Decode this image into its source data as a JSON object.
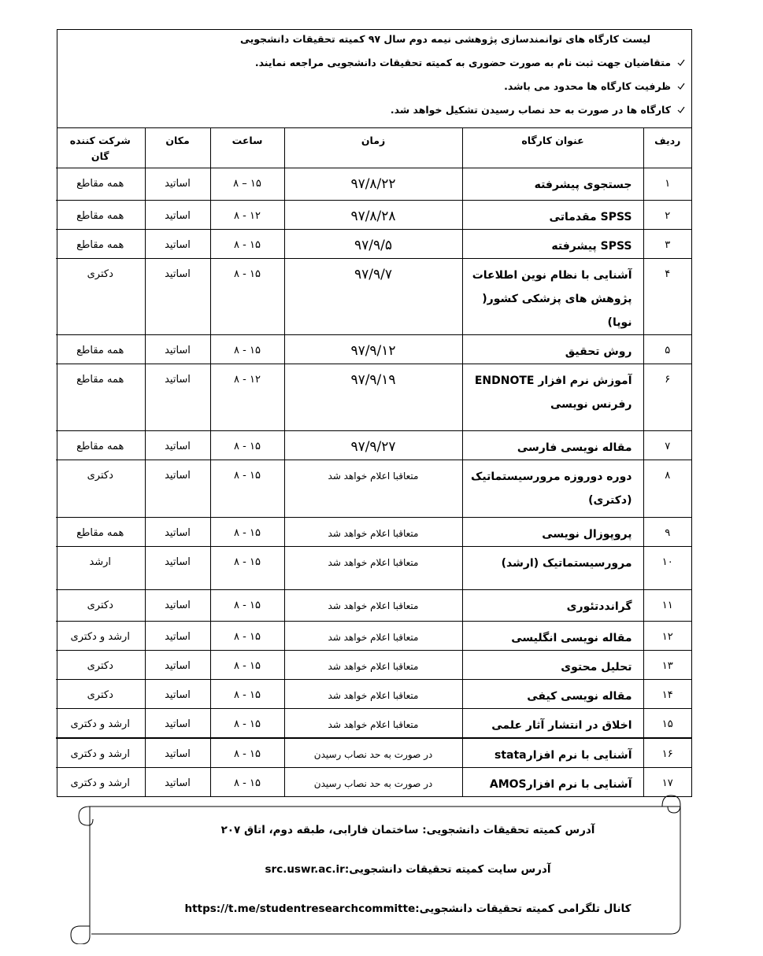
{
  "header": {
    "title": "لیست کارگاه های توانمندسازی پژوهشی نیمه دوم سال ۹۷ کمیته تحقیقات دانشجویی",
    "notes": [
      "متقاضیان جهت ثبت نام به صورت حضوری به کمیته تحقیقات دانشجویی مراجعه نمایند.",
      "ظرفیت کارگاه ها محدود می باشد.",
      "کارگاه ها در صورت به حد نصاب رسیدن تشکیل خواهد شد."
    ]
  },
  "table": {
    "columns": [
      "ردیف",
      "عنوان کارگاه",
      "زمان",
      "ساعت",
      "مکان",
      "شرکت کننده گان"
    ],
    "rows": [
      [
        "۱",
        "جستجوی پیشرفته",
        "۹۷/۸/۲۲",
        "۸ – ۱۵",
        "اساتید",
        "همه مقاطع"
      ],
      [
        "۲",
        "SPSS مقدماتی",
        "۹۷/۸/۲۸",
        "۸ - ۱۲",
        "اساتید",
        "همه مقاطع"
      ],
      [
        "۳",
        "SPSS  پیشرفته",
        "۹۷/۹/۵",
        "۸ - ۱۵",
        "اساتید",
        "همه مقاطع"
      ],
      [
        "۴",
        "آشنایی با نظام نوین اطلاعات پژوهش های پزشکی کشور( نوپا)",
        "۹۷/۹/۷",
        "۸ - ۱۵",
        "اساتید",
        "دکتری"
      ],
      [
        "۵",
        "روش تحقیق",
        "۹۷/۹/۱۲",
        "۸ - ۱۵",
        "اساتید",
        "همه مقاطع"
      ],
      [
        "۶",
        "آموزش نرم افزار ENDNOTE رفرنس نویسی",
        "۹۷/۹/۱۹",
        "۸ - ۱۲",
        "اساتید",
        "همه مقاطع"
      ],
      [
        "۷",
        "مقاله نویسی فارسی",
        "۹۷/۹/۲۷",
        "۸ - ۱۵",
        "اساتید",
        "همه مقاطع"
      ],
      [
        "۸",
        "دوره دوروزه مرورسیستماتیک (دکتری)",
        "متعاقبا اعلام خواهد شد",
        "۸ - ۱۵",
        "اساتید",
        "دکتری"
      ],
      [
        "۹",
        "پروپوزال نویسی",
        "متعاقبا اعلام خواهد شد",
        "۸ - ۱۵",
        "اساتید",
        "همه مقاطع"
      ],
      [
        "۱۰",
        "مرورسیستماتیک (ارشد)",
        "متعاقبا اعلام خواهد شد",
        "۸ - ۱۵",
        "اساتید",
        "ارشد"
      ],
      [
        "۱۱",
        "گراندد‌تئوری",
        "متعاقبا اعلام خواهد شد",
        "۸ - ۱۵",
        "اساتید",
        "دکتری"
      ],
      [
        "۱۲",
        "مقاله نویسی انگلیسی",
        "متعاقبا اعلام خواهد شد",
        "۸ - ۱۵",
        "اساتید",
        "ارشد و دکتری"
      ],
      [
        "۱۳",
        "تحلیل محتوی",
        "متعاقبا اعلام خواهد شد",
        "۸ - ۱۵",
        "اساتید",
        "دکتری"
      ],
      [
        "۱۴",
        "مقاله نویسی کیفی",
        "متعاقبا اعلام خواهد شد",
        "۸ - ۱۵",
        "اساتید",
        "دکتری"
      ],
      [
        "۱۵",
        "اخلاق در انتشار آثار علمی",
        "متعاقبا اعلام خواهد شد",
        "۸ - ۱۵",
        "اساتید",
        "ارشد و  دکتری"
      ],
      [
        "۱۶",
        "آشنایی با نرم افزارstata",
        "در صورت به حد نصاب رسیدن",
        "۸ - ۱۵",
        "اساتید",
        "ارشد و دکتری"
      ],
      [
        "۱۷",
        "آشنایی با نرم افزارAMOS",
        "در صورت به حد نصاب رسیدن",
        "۸ - ۱۵",
        "اساتید",
        "ارشد و دکتری"
      ]
    ]
  },
  "footer": {
    "lines": [
      "آدرس کمیته تحقیقات دانشجویی: ساختمان فارابی، طبقه دوم، اتاق ۲۰۷",
      "آدرس سایت کمیته تحقیقات دانشجویی:src.uswr.ac.ir",
      "کانال تلگرامی کمیته تحقیقات دانشجویی:https://t.me/studentresearchcommitte"
    ]
  }
}
